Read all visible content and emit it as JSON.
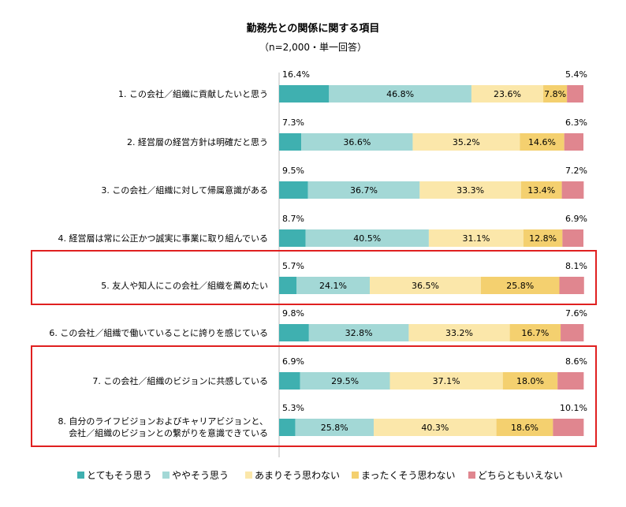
{
  "chart_data": {
    "type": "bar",
    "orientation": "horizontal-stacked-100",
    "title": "勤務先との関係に関する項目",
    "subtitle": "（n=2,000・単一回答）",
    "categories": [
      [
        "1. この会社／組織に貢献したいと思う"
      ],
      [
        "2. 経営層の経営方針は明確だと思う"
      ],
      [
        "3. この会社／組織に対して帰属意識がある"
      ],
      [
        "4. 経営層は常に公正かつ誠実に事業に取り組んでいる"
      ],
      [
        "5. 友人や知人にこの会社／組織を薦めたい"
      ],
      [
        "6. この会社／組織で働いていることに誇りを感じている"
      ],
      [
        "7. この会社／組織のビジョンに共感している"
      ],
      [
        "8. 自分のライフビジョンおよびキャリアビジョンと、",
        "会社／組織のビジョンとの繋がりを意識できている"
      ]
    ],
    "series": [
      {
        "name": "とてもそう思う",
        "color": "#3fb0b0",
        "values": [
          16.4,
          7.3,
          9.5,
          8.7,
          5.7,
          9.8,
          6.9,
          5.3
        ]
      },
      {
        "name": "ややそう思う",
        "color": "#a3d8d6",
        "values": [
          46.8,
          36.6,
          36.7,
          40.5,
          24.1,
          32.8,
          29.5,
          25.8
        ]
      },
      {
        "name": "あまりそう思わない",
        "color": "#fbe7aa",
        "values": [
          23.6,
          35.2,
          33.3,
          31.1,
          36.5,
          33.2,
          37.1,
          40.3
        ]
      },
      {
        "name": "まったくそう思わない",
        "color": "#f4d06f",
        "values": [
          7.8,
          14.6,
          13.4,
          12.8,
          25.8,
          16.7,
          18.0,
          18.6
        ]
      },
      {
        "name": "どちらともいえない",
        "color": "#e0868f",
        "values": [
          5.4,
          6.3,
          7.2,
          6.9,
          8.1,
          7.6,
          8.6,
          10.1
        ]
      }
    ],
    "value_suffix": "%",
    "xlim": [
      0,
      100
    ],
    "highlighted_groups": [
      [
        5
      ],
      [
        7,
        8
      ]
    ],
    "highlight_color": "#e02020",
    "legend_position": "bottom"
  }
}
